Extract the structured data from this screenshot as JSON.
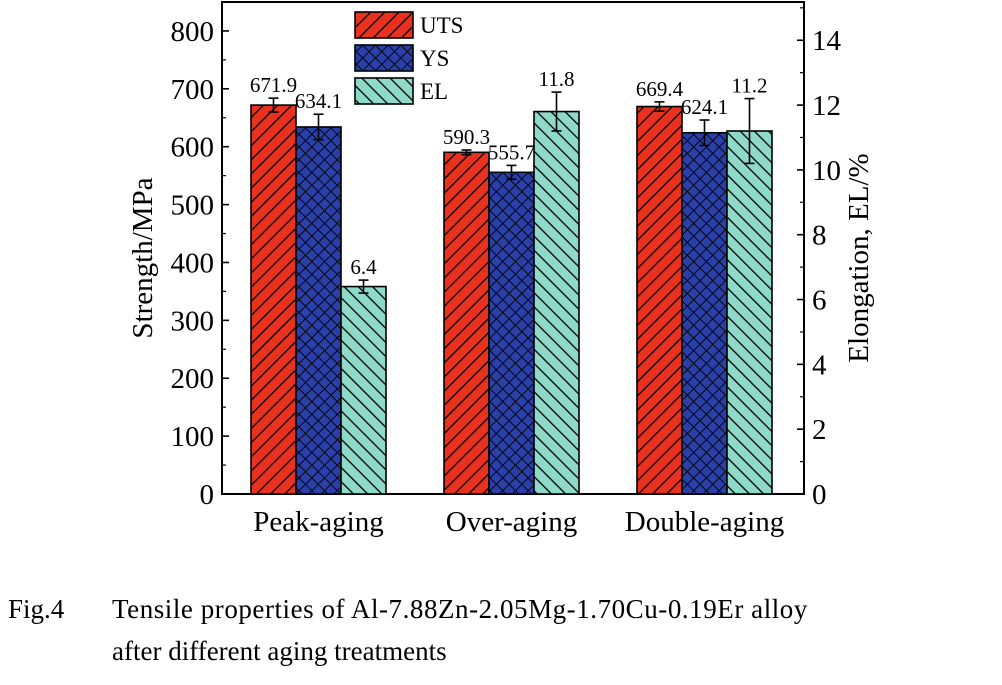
{
  "chart_data": {
    "type": "bar",
    "categories": [
      "Peak-aging",
      "Over-aging",
      "Double-aging"
    ],
    "ylabel": "Strength/MPa",
    "ylim": [
      0,
      850
    ],
    "yticks": [
      0,
      100,
      200,
      300,
      400,
      500,
      600,
      700,
      800
    ],
    "y2label": "Elongation, EL/%",
    "y2lim": [
      0,
      15.18
    ],
    "y2ticks": [
      0,
      2,
      4,
      6,
      8,
      10,
      12,
      14
    ],
    "legend_position": "top-center",
    "series": [
      {
        "name": "UTS",
        "axis": "left",
        "color": "#e8321f",
        "pattern": "diagonal-lines",
        "values": [
          671.9,
          590.3,
          669.4
        ],
        "errors": [
          12,
          4,
          8
        ],
        "labels": [
          "671.9",
          "590.3",
          "669.4"
        ]
      },
      {
        "name": "YS",
        "axis": "left",
        "color": "#2a3fa8",
        "pattern": "crosshatch",
        "values": [
          634.1,
          555.7,
          624.1
        ],
        "errors": [
          22,
          12,
          22
        ],
        "labels": [
          "634.1",
          "555.7",
          "624.1"
        ]
      },
      {
        "name": "EL",
        "axis": "right",
        "color": "#8fd9c8",
        "pattern": "back-diagonal-lines",
        "values": [
          6.4,
          11.8,
          11.2
        ],
        "errors": [
          0.2,
          0.6,
          1.0
        ],
        "labels": [
          "6.4",
          "11.8",
          "11.2"
        ]
      }
    ]
  },
  "caption": {
    "number": "Fig.4",
    "line1": "Tensile properties of Al-7.88Zn-2.05Mg-1.70Cu-0.19Er alloy",
    "line2": "after different aging treatments"
  }
}
